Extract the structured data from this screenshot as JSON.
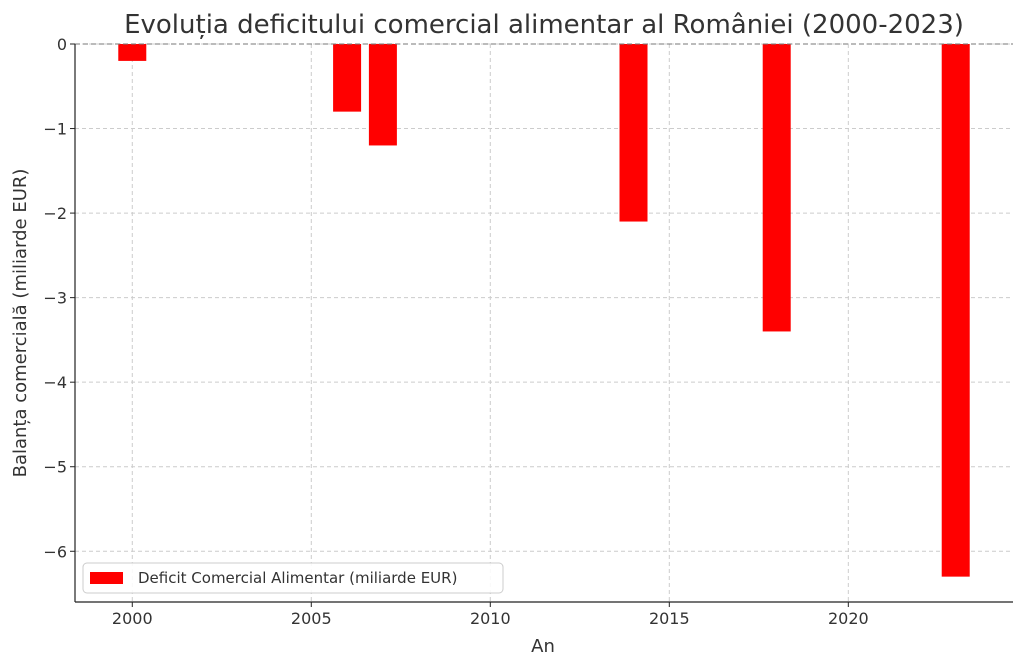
{
  "chart_data": {
    "type": "bar",
    "title": "Evoluția deficitului comercial alimentar al României (2000-2023)",
    "xlabel": "An",
    "ylabel": "Balanța comercială (miliarde EUR)",
    "x": [
      2000,
      2006,
      2007,
      2014,
      2018,
      2023
    ],
    "series": [
      {
        "name": "Deficit Comercial Alimentar (miliarde EUR)",
        "values": [
          -0.2,
          -0.8,
          -1.2,
          -2.1,
          -3.4,
          -6.3
        ],
        "color": "#ff0000"
      }
    ],
    "xlim": [
      1998.4,
      2024.6
    ],
    "ylim": [
      -6.6,
      0
    ],
    "xticks": [
      "2000",
      "2005",
      "2010",
      "2015",
      "2020"
    ],
    "yticks": [
      "0",
      "−1",
      "−2",
      "−3",
      "−4",
      "−5",
      "−6"
    ],
    "zero_line": "dashed",
    "grid": true,
    "legend_position": "lower-left"
  }
}
